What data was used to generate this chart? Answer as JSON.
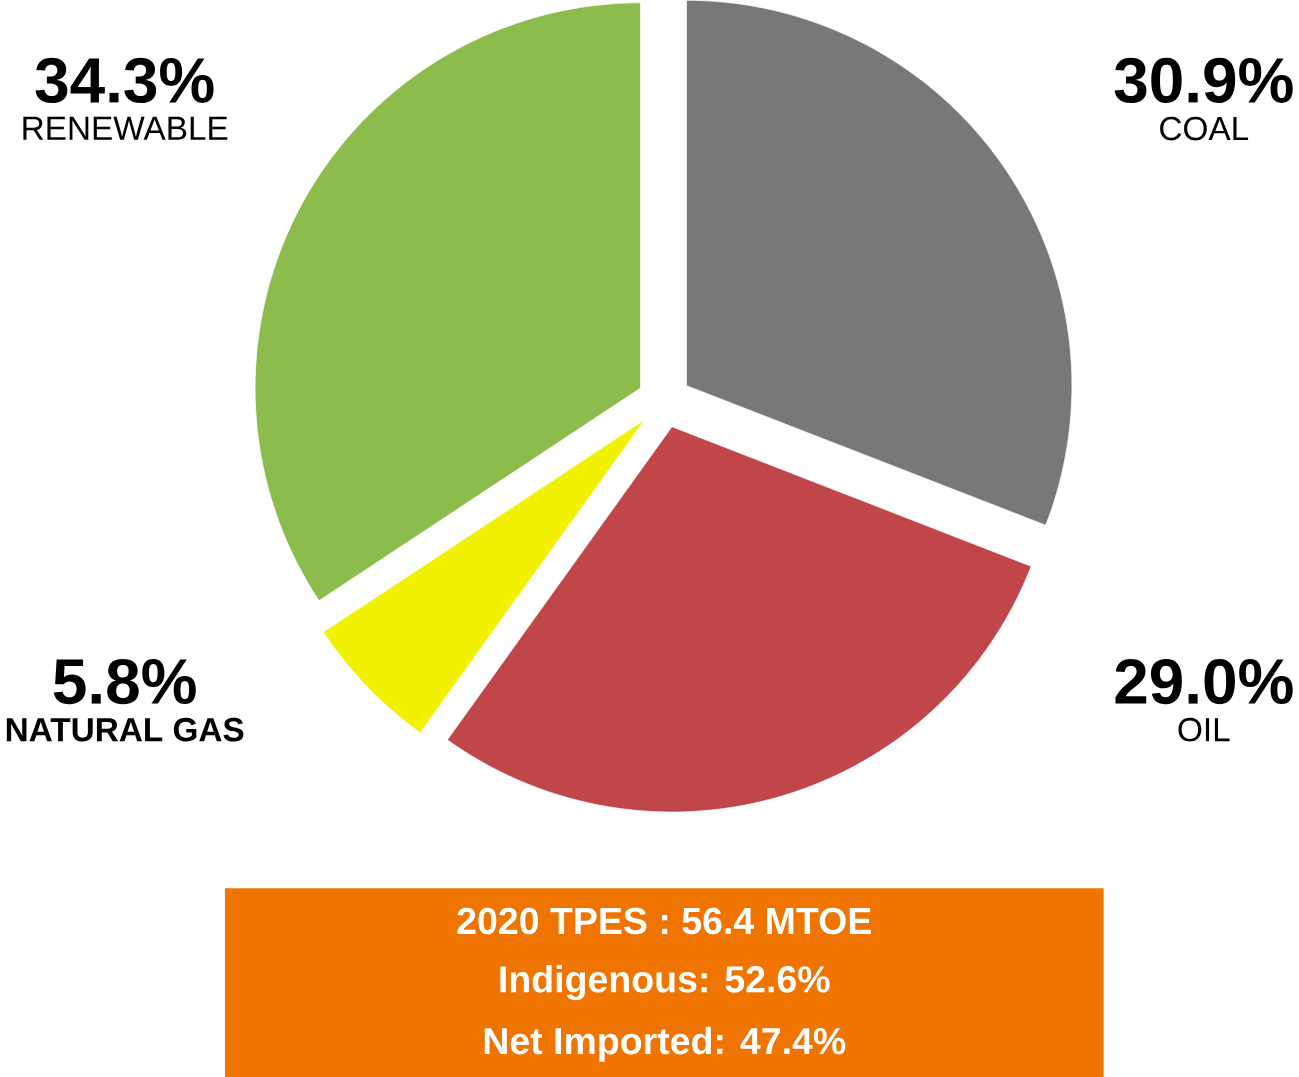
{
  "chart_data": {
    "type": "pie",
    "categories": [
      "COAL",
      "OIL",
      "NATURAL GAS",
      "RENEWABLE"
    ],
    "values": [
      30.9,
      29.0,
      5.8,
      34.3
    ],
    "colors": [
      "#77787a",
      "#c0464a",
      "#f2f200",
      "#8cbc4c"
    ],
    "value_labels": [
      "30.9%",
      "29.0%",
      "5.8%",
      "34.3%"
    ],
    "annotations": [
      "2020 TPES : 56.4 MTOE",
      "Indigenous: 52.6%",
      "Net Imported: 47.4%"
    ]
  }
}
